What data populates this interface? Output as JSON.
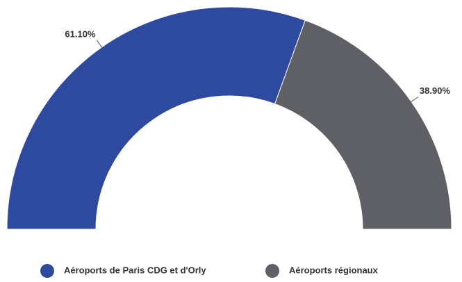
{
  "chart_data": {
    "type": "donut",
    "categories": [
      "Aéroports de Paris CDG et d'Orly",
      "Aéroports régionaux"
    ],
    "values": [
      61.1,
      38.9
    ],
    "value_labels": [
      "61.10%",
      "38.90%"
    ],
    "colors": [
      "#2e4a9e",
      "#5f5f66"
    ]
  }
}
